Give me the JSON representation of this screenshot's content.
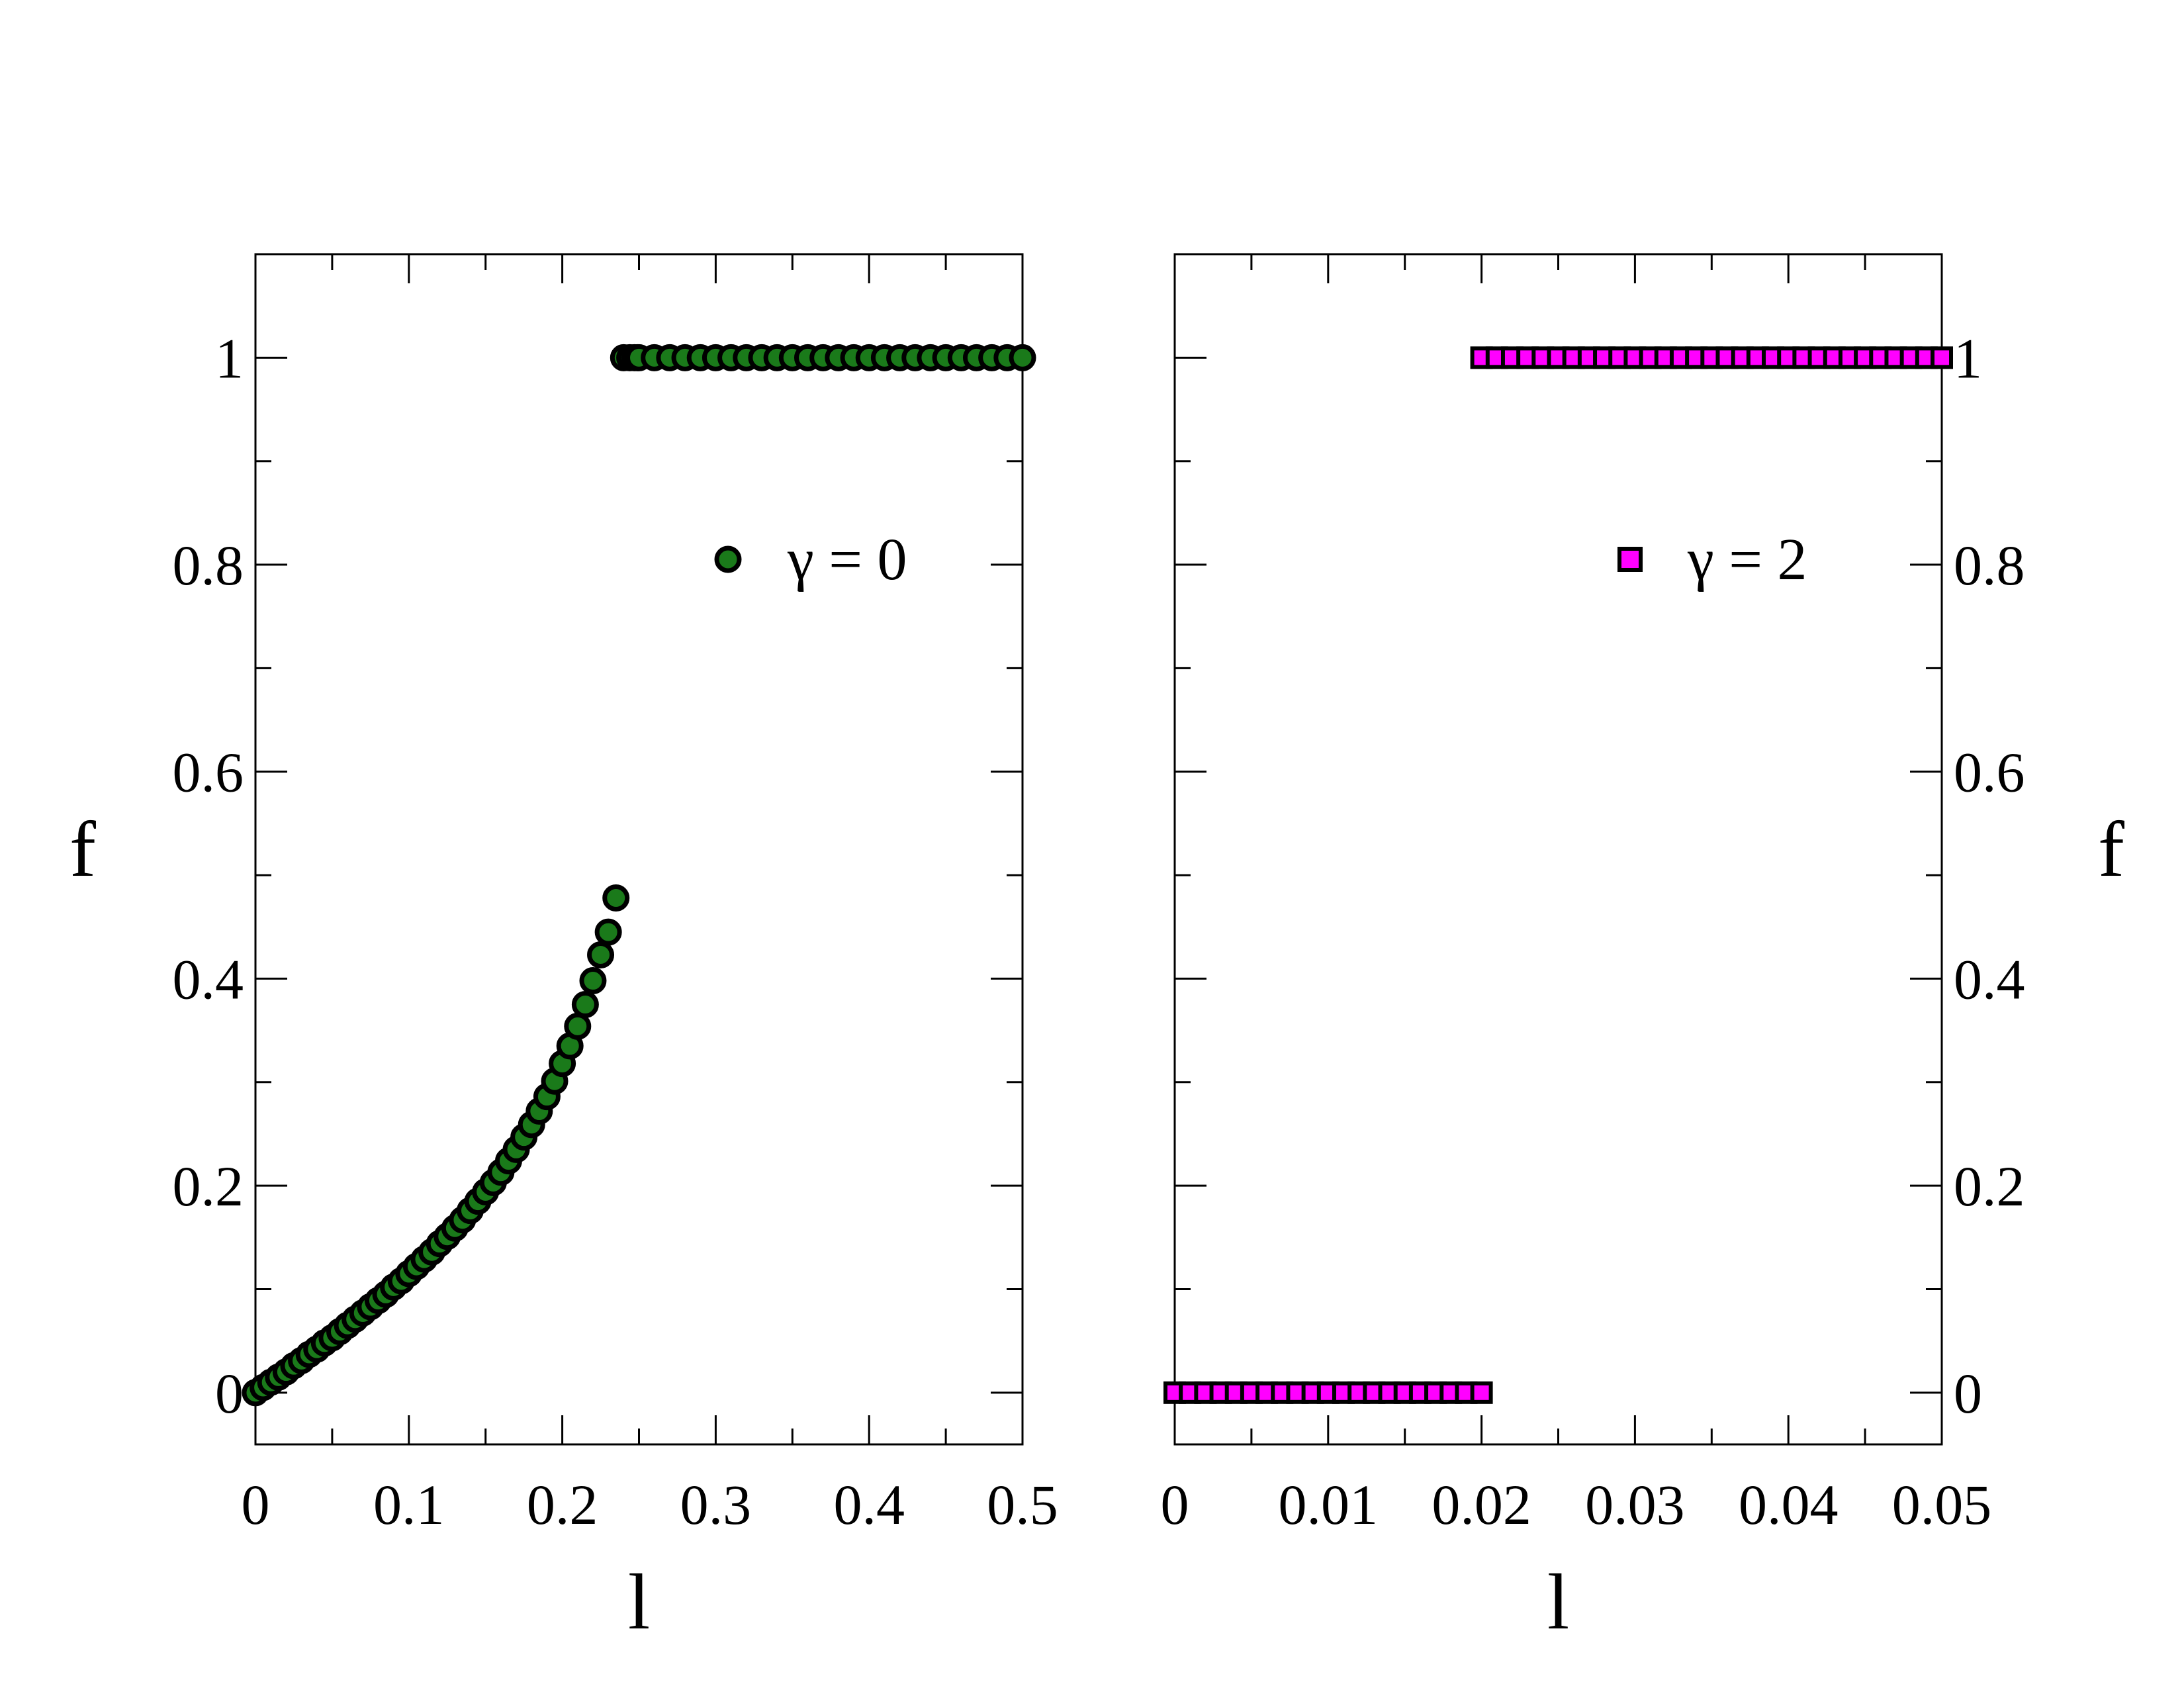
{
  "chart_data": [
    {
      "type": "scatter",
      "title": "",
      "xlabel": "l",
      "ylabel": "f",
      "xlim": [
        0,
        0.5
      ],
      "ylim": [
        -0.05,
        1.1
      ],
      "xticks": [
        "0",
        "0.1",
        "0.2",
        "0.3",
        "0.4",
        "0.5"
      ],
      "yticks": [
        "0",
        "0.2",
        "0.4",
        "0.6",
        "0.8",
        "1"
      ],
      "ytick_side": "left",
      "legend_position": "upper-right",
      "grid": false,
      "series": [
        {
          "name": "γ = 0",
          "marker": "circle",
          "color": "#1a7a1a",
          "x": [
            0,
            0.005,
            0.01,
            0.015,
            0.02,
            0.025,
            0.03,
            0.035,
            0.04,
            0.045,
            0.05,
            0.055,
            0.06,
            0.065,
            0.07,
            0.075,
            0.08,
            0.085,
            0.09,
            0.095,
            0.1,
            0.105,
            0.11,
            0.115,
            0.12,
            0.125,
            0.13,
            0.135,
            0.14,
            0.145,
            0.15,
            0.155,
            0.16,
            0.165,
            0.17,
            0.175,
            0.18,
            0.185,
            0.19,
            0.195,
            0.2,
            0.205,
            0.21,
            0.215,
            0.22,
            0.225,
            0.23,
            0.235,
            0.24,
            0.244,
            0.247,
            0.249,
            0.25,
            0.26,
            0.27,
            0.28,
            0.29,
            0.3,
            0.31,
            0.32,
            0.33,
            0.34,
            0.35,
            0.36,
            0.37,
            0.38,
            0.39,
            0.4,
            0.41,
            0.42,
            0.43,
            0.44,
            0.45,
            0.46,
            0.47,
            0.48,
            0.49,
            0.5
          ],
          "y": [
            0.0,
            0.005,
            0.01,
            0.015,
            0.02,
            0.026,
            0.031,
            0.037,
            0.042,
            0.048,
            0.053,
            0.059,
            0.065,
            0.071,
            0.077,
            0.083,
            0.089,
            0.095,
            0.102,
            0.108,
            0.115,
            0.122,
            0.129,
            0.136,
            0.144,
            0.151,
            0.159,
            0.167,
            0.176,
            0.185,
            0.194,
            0.203,
            0.213,
            0.224,
            0.235,
            0.247,
            0.259,
            0.272,
            0.286,
            0.301,
            0.318,
            0.335,
            0.354,
            0.375,
            0.398,
            0.423,
            0.445,
            0.478,
            1.0,
            1.0,
            1.0,
            1.0,
            1.0,
            1.0,
            1.0,
            1.0,
            1.0,
            1.0,
            1.0,
            1.0,
            1.0,
            1.0,
            1.0,
            1.0,
            1.0,
            1.0,
            1.0,
            1.0,
            1.0,
            1.0,
            1.0,
            1.0,
            1.0,
            1.0,
            1.0,
            1.0,
            1.0,
            1.0
          ]
        }
      ]
    },
    {
      "type": "scatter",
      "title": "",
      "xlabel": "l",
      "ylabel": "f",
      "xlim": [
        0,
        0.05
      ],
      "ylim": [
        -0.05,
        1.1
      ],
      "xticks": [
        "0",
        "0.01",
        "0.02",
        "0.03",
        "0.04",
        "0.05"
      ],
      "yticks": [
        "0",
        "0.2",
        "0.4",
        "0.6",
        "0.8",
        "1"
      ],
      "ytick_side": "right",
      "legend_position": "upper-right",
      "grid": false,
      "series": [
        {
          "name": "γ = 2",
          "marker": "square",
          "color": "#ff00ff",
          "x": [
            0,
            0.001,
            0.002,
            0.003,
            0.004,
            0.005,
            0.006,
            0.007,
            0.008,
            0.009,
            0.01,
            0.011,
            0.012,
            0.013,
            0.014,
            0.015,
            0.016,
            0.017,
            0.018,
            0.019,
            0.02,
            0.02,
            0.021,
            0.022,
            0.023,
            0.024,
            0.025,
            0.026,
            0.027,
            0.028,
            0.029,
            0.03,
            0.031,
            0.032,
            0.033,
            0.034,
            0.035,
            0.036,
            0.037,
            0.038,
            0.039,
            0.04,
            0.041,
            0.042,
            0.043,
            0.044,
            0.045,
            0.046,
            0.047,
            0.048,
            0.049,
            0.05
          ],
          "y": [
            0,
            0,
            0,
            0,
            0,
            0,
            0,
            0,
            0,
            0,
            0,
            0,
            0,
            0,
            0,
            0,
            0,
            0,
            0,
            0,
            0,
            1,
            1,
            1,
            1,
            1,
            1,
            1,
            1,
            1,
            1,
            1,
            1,
            1,
            1,
            1,
            1,
            1,
            1,
            1,
            1,
            1,
            1,
            1,
            1,
            1,
            1,
            1,
            1,
            1,
            1,
            1
          ]
        }
      ]
    }
  ]
}
